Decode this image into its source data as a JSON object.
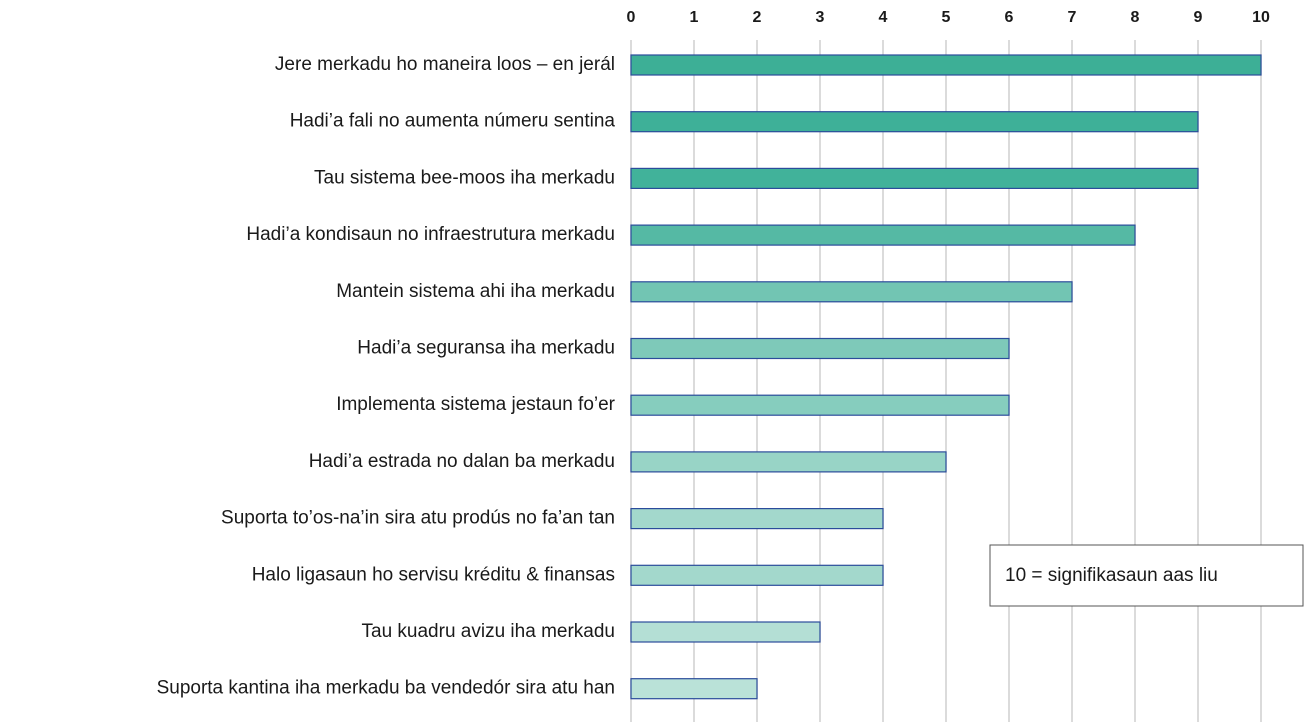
{
  "chart_data": {
    "type": "barh",
    "categories": [
      "Jere merkadu ho maneira loos – en jerál",
      "Hadi’a fali no aumenta númeru sentina",
      "Tau sistema bee-moos iha merkadu",
      "Hadi’a kondisaun no infraestrutura merkadu",
      "Mantein sistema ahi iha merkadu",
      "Hadi’a seguransa iha merkadu",
      "Implementa sistema jestaun fo’er",
      "Hadi’a estrada no dalan ba merkadu",
      "Suporta to’os-na’in sira atu prodús no fa’an tan",
      "Halo ligasaun ho servisu kréditu & finansas",
      "Tau kuadru avizu iha merkadu",
      "Suporta kantina iha merkadu ba vendedór sira atu han"
    ],
    "values": [
      10,
      9,
      9,
      8,
      7,
      6,
      6,
      5,
      4,
      4,
      3,
      2
    ],
    "colors": [
      "#3daf96",
      "#3eb098",
      "#41b29a",
      "#55b9a4",
      "#72c5b3",
      "#7ec9b9",
      "#86cdbe",
      "#98d4c6",
      "#a3d8cc",
      "#a3d8cc",
      "#b4dfd5",
      "#bae2d8"
    ],
    "xlim": [
      0,
      10
    ],
    "xticks": [
      0,
      1,
      2,
      3,
      4,
      5,
      6,
      7,
      8,
      9,
      10
    ],
    "grid": true,
    "annotation": "10 = signifikasaun aas liu"
  }
}
